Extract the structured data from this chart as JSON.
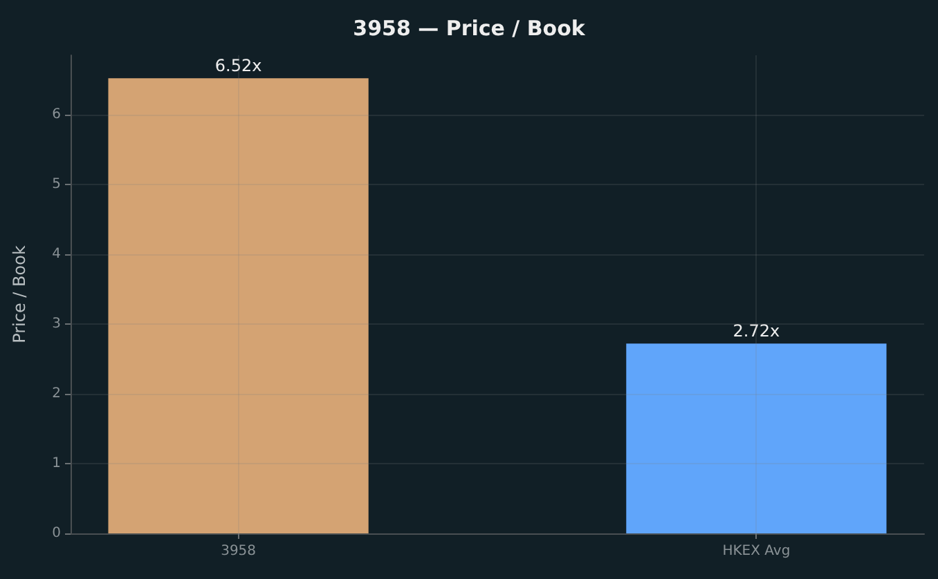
{
  "chart_data": {
    "type": "bar",
    "title": "3958 — Price / Book",
    "ylabel": "Price / Book",
    "categories": [
      "3958",
      "HKEX Avg"
    ],
    "values": [
      6.52,
      2.72
    ],
    "colors": [
      "#d4a373",
      "#60a5fa"
    ],
    "value_labels": [
      "6.52x",
      "2.72x"
    ],
    "ylim": [
      0,
      6.85
    ],
    "yticks": [
      0,
      1,
      2,
      3,
      4,
      5,
      6
    ],
    "grid": true
  }
}
